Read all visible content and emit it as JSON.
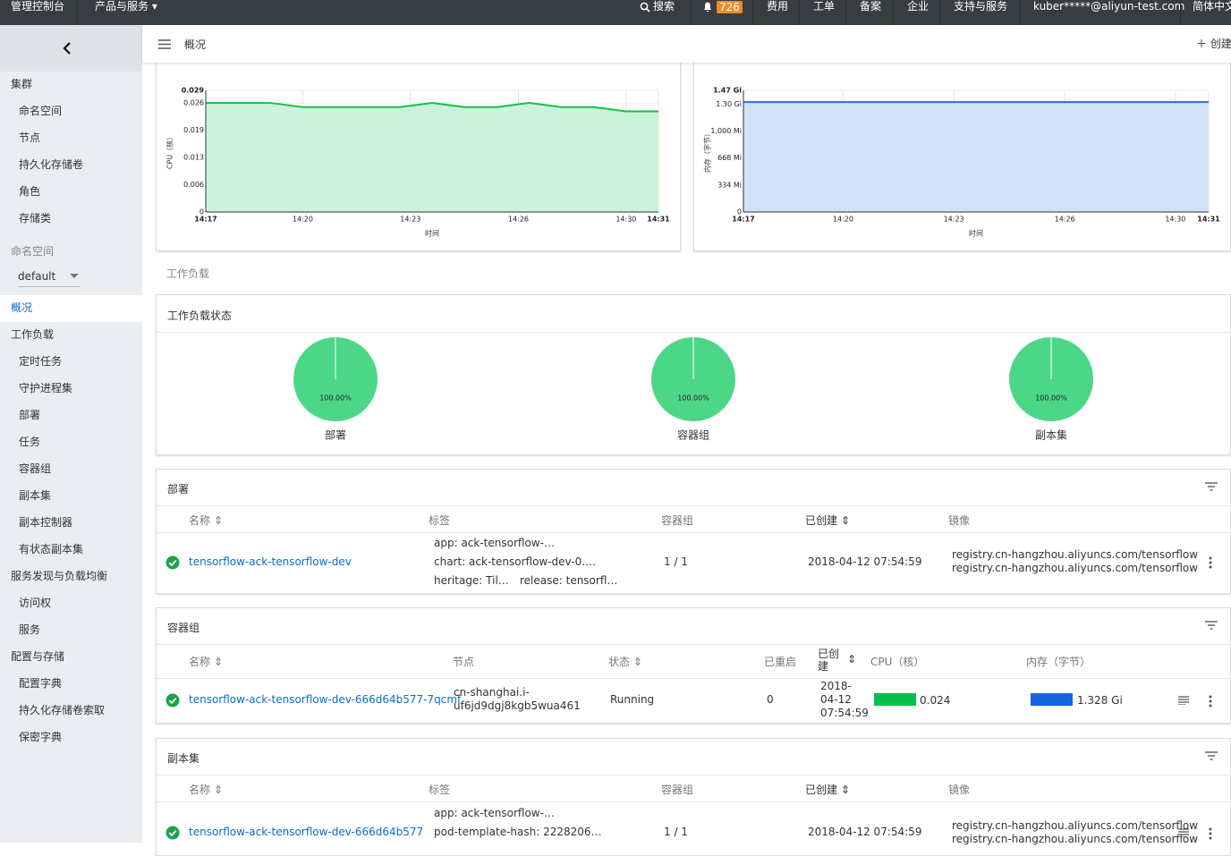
{
  "topbar": {
    "console": "管理控制台",
    "products": "产品与服务",
    "search": "搜索",
    "notifications": "726",
    "links": [
      "费用",
      "工单",
      "备案",
      "企业",
      "支持与服务"
    ],
    "user": "kuber*****@aliyun-test.com",
    "language": "简体中文"
  },
  "sidebar": {
    "groups": [
      {
        "title": "集群",
        "items": [
          "命名空间",
          "节点",
          "持久化存储卷",
          "角色",
          "存储类"
        ]
      },
      {
        "title": "工作负载",
        "items": [
          "定时任务",
          "守护进程集",
          "部署",
          "任务",
          "容器组",
          "副本集",
          "副本控制器",
          "有状态副本集"
        ]
      },
      {
        "title": "服务发现与负载均衡",
        "items": [
          "访问权",
          "服务"
        ]
      },
      {
        "title": "配置与存储",
        "items": [
          "配置字典",
          "持久化存储卷索取",
          "保密字典"
        ]
      }
    ],
    "namespace_label": "命名空间",
    "namespace": "default",
    "overview": "概况"
  },
  "header": {
    "title": "概况",
    "create": "创建"
  },
  "charts": [
    {
      "type": "area",
      "y_label": "CPU（核）",
      "x_label": "时间",
      "color": "#19be4c",
      "fill": "#c9f2d7",
      "ylim": [
        0,
        0.029
      ],
      "yticks": [
        0,
        {
          "value": 0.0065,
          "label": "0.006"
        },
        0.013,
        {
          "value": 0.0195,
          "label": "0.019"
        },
        0.026,
        0.029
      ],
      "xlim": [
        0,
        14
      ],
      "xticks": [
        {
          "value": 0,
          "label": "14:17"
        },
        {
          "value": 3,
          "label": "14:20"
        },
        {
          "value": 6.33,
          "label": "14:23"
        },
        {
          "value": 9.67,
          "label": "14:26"
        },
        {
          "value": 13,
          "label": "14:30"
        },
        {
          "value": 14,
          "label": "14:31"
        }
      ],
      "values": [
        0.026,
        0.026,
        0.026,
        0.025,
        0.025,
        0.025,
        0.025,
        0.026,
        0.025,
        0.025,
        0.026,
        0.025,
        0.025,
        0.024,
        0.024
      ]
    },
    {
      "type": "area",
      "y_label": "内存（字节）",
      "x_label": "时间",
      "color": "#2a6fd6",
      "fill": "#cfe0f8",
      "ylim": [
        0,
        1505
      ],
      "yticks": [
        0,
        {
          "value": 334,
          "label": "334 Mi"
        },
        {
          "value": 668,
          "label": "668 Mi"
        },
        {
          "value": 1000,
          "label": "1,000 Mi"
        },
        {
          "value": 1331,
          "label": "1.30 Gi"
        },
        {
          "value": 1505,
          "label": "1.47 Gi"
        }
      ],
      "xlim": [
        0,
        14
      ],
      "xticks": [
        {
          "value": 0,
          "label": "14:17"
        },
        {
          "value": 3,
          "label": "14:20"
        },
        {
          "value": 6.33,
          "label": "14:23"
        },
        {
          "value": 9.67,
          "label": "14:26"
        },
        {
          "value": 13,
          "label": "14:30"
        },
        {
          "value": 14,
          "label": "14:31"
        }
      ],
      "values": [
        1360,
        1360,
        1360,
        1360,
        1360,
        1360,
        1360,
        1360,
        1360,
        1360,
        1360,
        1360,
        1360,
        1360,
        1360
      ]
    }
  ],
  "section_label": "工作负载",
  "workload_status": {
    "title": "工作负载状态",
    "type": "pie",
    "color": "#4cd787",
    "labels": [
      "部署",
      "容器组",
      "副本集"
    ],
    "values": [
      100,
      100,
      100
    ],
    "value_labels": [
      "100.00%",
      "100.00%",
      "100.00%"
    ]
  },
  "deployments": {
    "title": "部署",
    "columns": [
      "名称",
      "标签",
      "容器组",
      "已创建",
      "镜像"
    ],
    "rows": [
      {
        "name": "tensorflow-ack-tensorflow-dev",
        "labels": [
          "app: ack-tensorflow-…",
          "chart: ack-tensorflow-dev-0.…",
          "heritage: Til…",
          "release: tensorfl…"
        ],
        "pods": "1 / 1",
        "created": "2018-04-12 07:54:59",
        "images": [
          "registry.cn-hangzhou.aliyuncs.com/tensorflow",
          "registry.cn-hangzhou.aliyuncs.com/tensorflow"
        ]
      }
    ]
  },
  "pods": {
    "title": "容器组",
    "columns": [
      "名称",
      "节点",
      "状态",
      "已重启",
      "已创建",
      "CPU（核）",
      "内存（字节）"
    ],
    "rows": [
      {
        "name": "tensorflow-ack-tensorflow-dev-666d64b577-7qcmf",
        "node": "cn-shanghai.i-uf6jd9dgj8kgb5wua461",
        "status": "Running",
        "restarts": 0,
        "created": "2018-04-12 07:54:59",
        "cpu": "0.024",
        "memory": "1.328 Gi"
      }
    ]
  },
  "replicasets": {
    "title": "副本集",
    "columns": [
      "名称",
      "标签",
      "容器组",
      "已创建",
      "镜像"
    ],
    "rows": [
      {
        "name": "tensorflow-ack-tensorflow-dev-666d64b577",
        "labels": [
          "app: ack-tensorflow-…",
          "pod-template-hash: 2228206…"
        ],
        "pods": "1 / 1",
        "created": "2018-04-12 07:54:59",
        "images": [
          "registry.cn-hangzhou.aliyuncs.com/tensorflow",
          "registry.cn-hangzhou.aliyuncs.com/tensorflow"
        ]
      }
    ]
  }
}
